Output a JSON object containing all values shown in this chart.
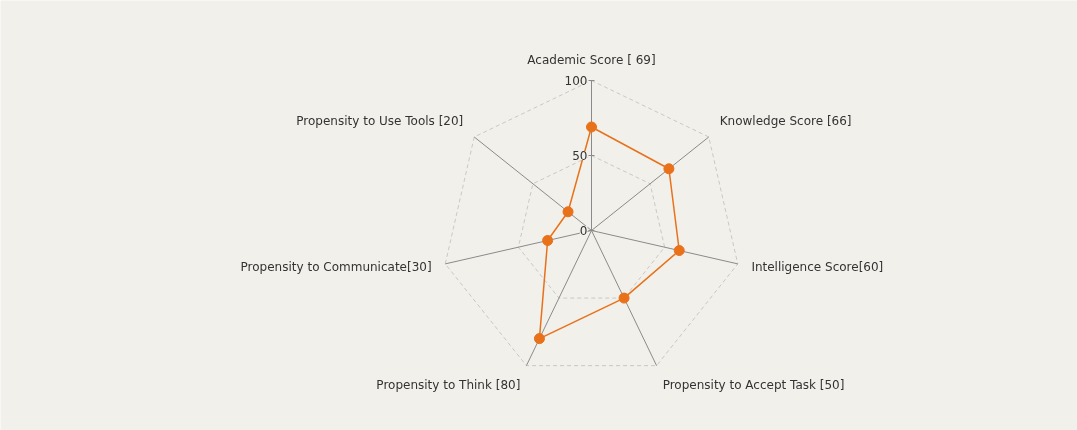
{
  "chart_data": {
    "type": "radar",
    "categories": [
      "Academic Score [ 69]",
      "Knowledge Score [66]",
      "Intelligence Score[60]",
      "Propensity to Accept Task [50]",
      "Propensity to Think [80]",
      "Propensity to Communicate[30]",
      "Propensity to Use Tools [20]"
    ],
    "series": [
      {
        "color": "#e8711a",
        "values": [
          69,
          66,
          60,
          50,
          80,
          30,
          20
        ]
      }
    ],
    "ylim": [
      0,
      100
    ],
    "yticks": [
      0,
      50,
      100
    ],
    "marker": "circle",
    "grid": true
  }
}
